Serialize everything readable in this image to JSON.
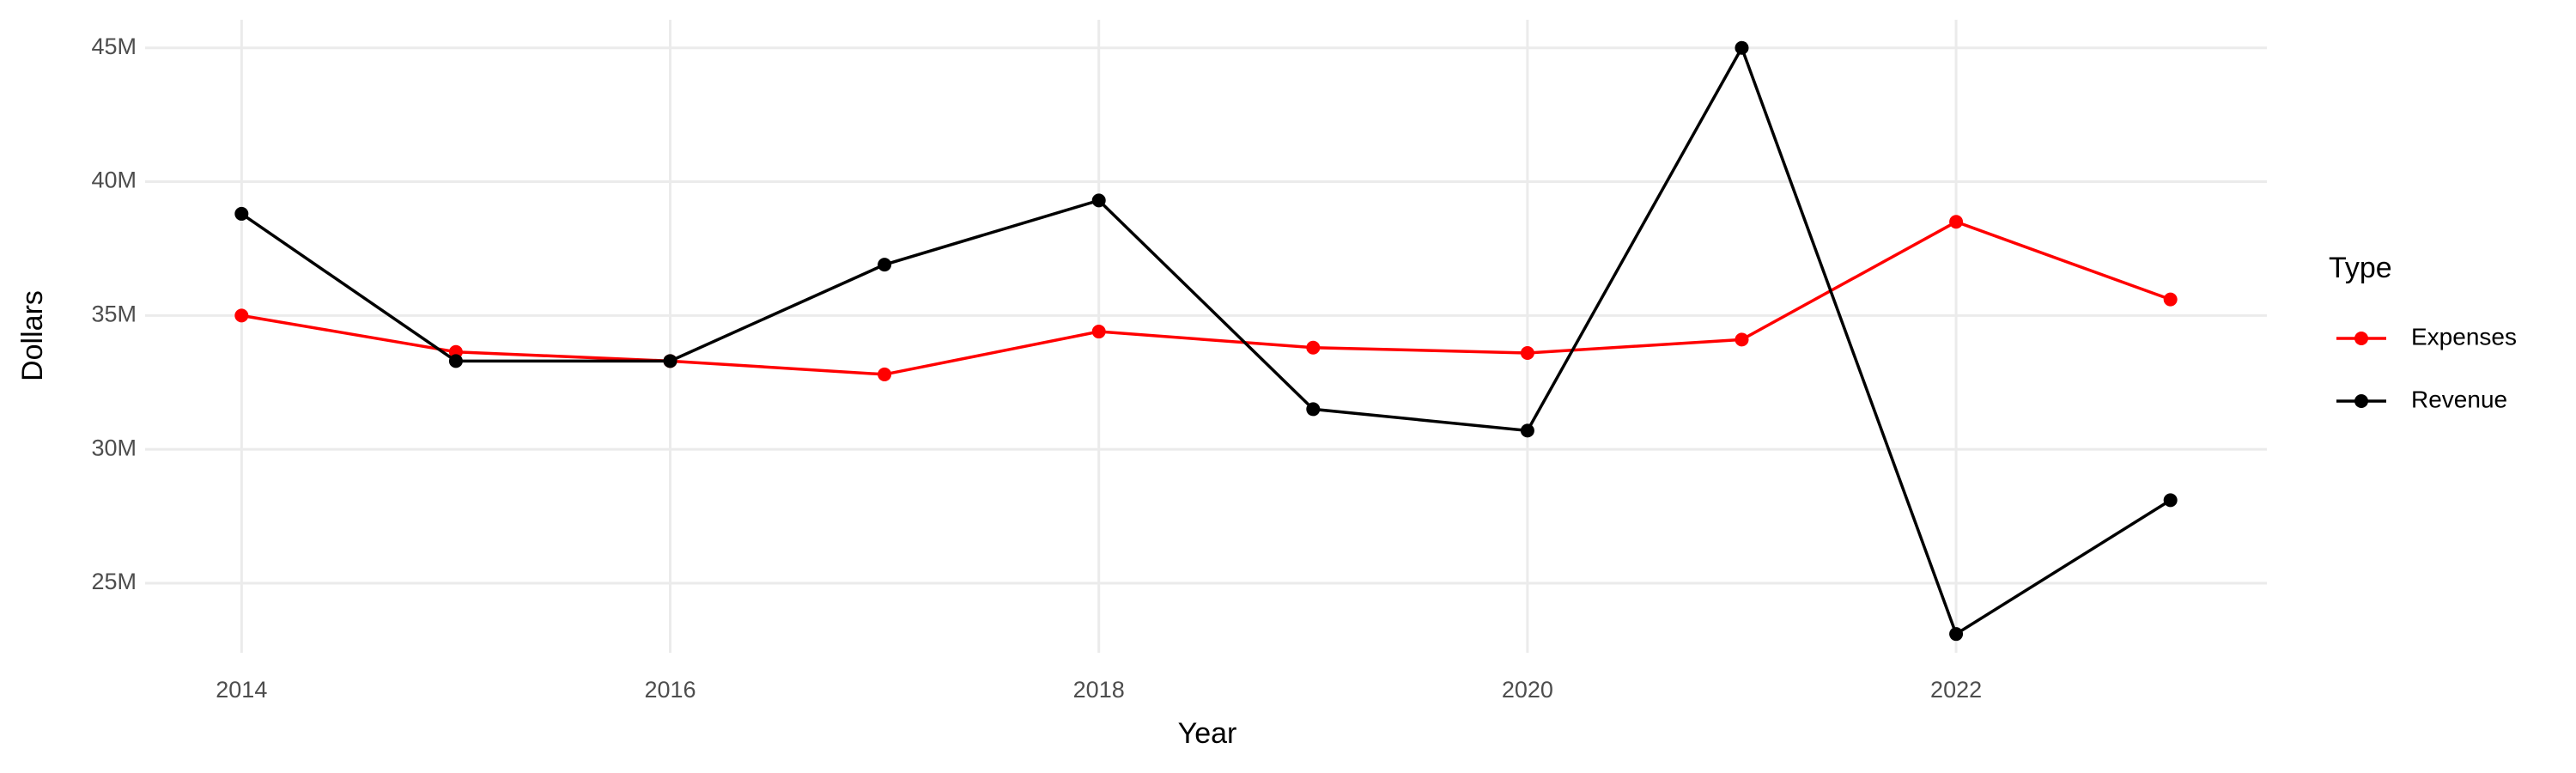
{
  "chart_data": {
    "type": "line",
    "x_label": "Year",
    "y_label": "Dollars",
    "legend_title": "Type",
    "x": [
      2014,
      2015,
      2016,
      2017,
      2018,
      2019,
      2020,
      2021,
      2022,
      2023
    ],
    "series": [
      {
        "name": "Expenses",
        "color": "#ff0000",
        "values": [
          35000000,
          33640000,
          33300000,
          32800000,
          34400000,
          33800000,
          33600000,
          34100000,
          38500000,
          35600000
        ]
      },
      {
        "name": "Revenue",
        "color": "#000000",
        "values": [
          38800000,
          33300000,
          33300000,
          36900000,
          39300000,
          31500000,
          30700000,
          45000000,
          23100000,
          28100000
        ]
      }
    ],
    "xlim": [
      2013.55,
      2023.45
    ],
    "xticks": [
      2014,
      2016,
      2018,
      2020,
      2022
    ],
    "ylim": [
      22400000,
      46050000
    ],
    "yticks": [
      {
        "value": 25000000,
        "label": "25M"
      },
      {
        "value": 30000000,
        "label": "30M"
      },
      {
        "value": 35000000,
        "label": "35M"
      },
      {
        "value": 40000000,
        "label": "40M"
      },
      {
        "value": 45000000,
        "label": "45M"
      }
    ],
    "grid": true,
    "legend": "right"
  }
}
